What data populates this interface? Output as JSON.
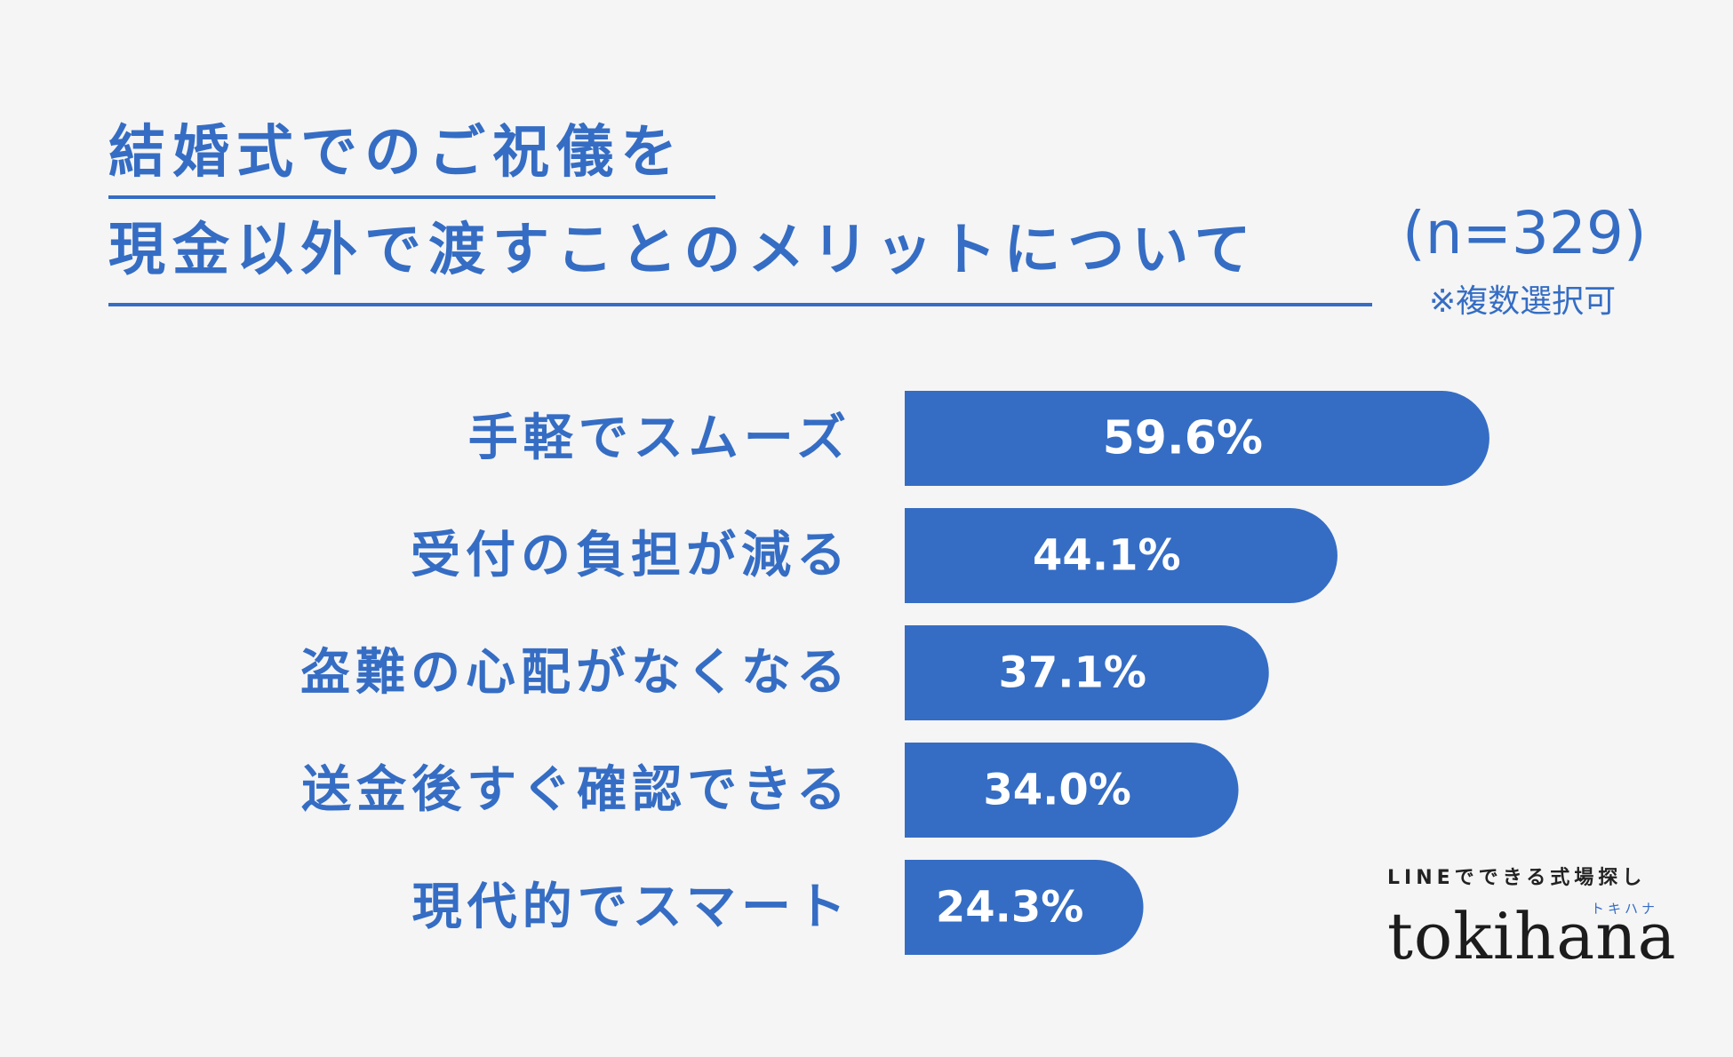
{
  "title": {
    "line1": "結婚式でのご祝儀を",
    "line2": "現金以外で渡すことのメリットについて"
  },
  "sample": {
    "n_label": "(n=329)",
    "note": "※複数選択可"
  },
  "chart_data": {
    "type": "bar",
    "orientation": "horizontal",
    "categories": [
      "手軽でスムーズ",
      "受付の負担が減る",
      "盗難の心配がなくなる",
      "送金後すぐ確認できる",
      "現代的でスマート"
    ],
    "values": [
      59.6,
      44.1,
      37.1,
      34.0,
      24.3
    ],
    "value_labels": [
      "59.6%",
      "44.1%",
      "37.1%",
      "34.0%",
      "24.3%"
    ],
    "unit": "%",
    "bar_color": "#356dc4",
    "grid": false,
    "legend": false
  },
  "logo": {
    "tagline": "LINEでできる式場探し",
    "kana": "トキハナ",
    "wordmark": "tokihana"
  }
}
